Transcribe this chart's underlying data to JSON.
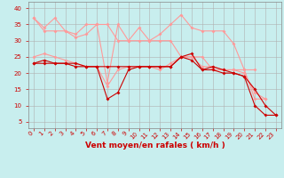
{
  "bg_color": "#c8eeee",
  "grid_color": "#b0b0b0",
  "xlabel": "Vent moyen/en rafales ( km/h )",
  "ylabel_ticks": [
    5,
    10,
    15,
    20,
    25,
    30,
    35,
    40
  ],
  "xlim": [
    -0.5,
    23.5
  ],
  "ylim": [
    3,
    42
  ],
  "xticks": [
    0,
    1,
    2,
    3,
    4,
    5,
    6,
    7,
    8,
    9,
    10,
    11,
    12,
    13,
    14,
    15,
    16,
    17,
    18,
    19,
    20,
    21,
    22,
    23
  ],
  "lines_dark": [
    [
      23,
      24,
      23,
      23,
      23,
      22,
      22,
      22,
      22,
      22,
      22,
      22,
      22,
      22,
      25,
      24,
      21,
      21,
      20,
      20,
      19,
      10,
      7,
      7
    ],
    [
      23,
      23,
      23,
      23,
      22,
      22,
      22,
      12,
      14,
      21,
      22,
      22,
      22,
      22,
      25,
      26,
      21,
      22,
      21,
      20,
      19,
      15,
      10,
      7
    ]
  ],
  "lines_light": [
    [
      37,
      34,
      37,
      33,
      31,
      32,
      35,
      17,
      35,
      30,
      34,
      30,
      32,
      35,
      38,
      34,
      33,
      33,
      33,
      29,
      21,
      12,
      12,
      null
    ],
    [
      37,
      33,
      33,
      33,
      32,
      35,
      35,
      35,
      30,
      30,
      30,
      30,
      30,
      30,
      25,
      25,
      25,
      21,
      21,
      21,
      21,
      21,
      null,
      null
    ],
    [
      25,
      26,
      25,
      24,
      23,
      22,
      22,
      16,
      21,
      22,
      22,
      22,
      21,
      23,
      25,
      25,
      22,
      22,
      21,
      21,
      20,
      14,
      12,
      null
    ]
  ],
  "color_dark": "#cc0000",
  "color_light": "#ff9999",
  "marker_size": 2.0,
  "linewidth_dark": 0.8,
  "linewidth_light": 0.8,
  "tick_fontsize": 5,
  "xlabel_fontsize": 6.5,
  "tick_color": "#cc0000",
  "xlabel_color": "#cc0000"
}
